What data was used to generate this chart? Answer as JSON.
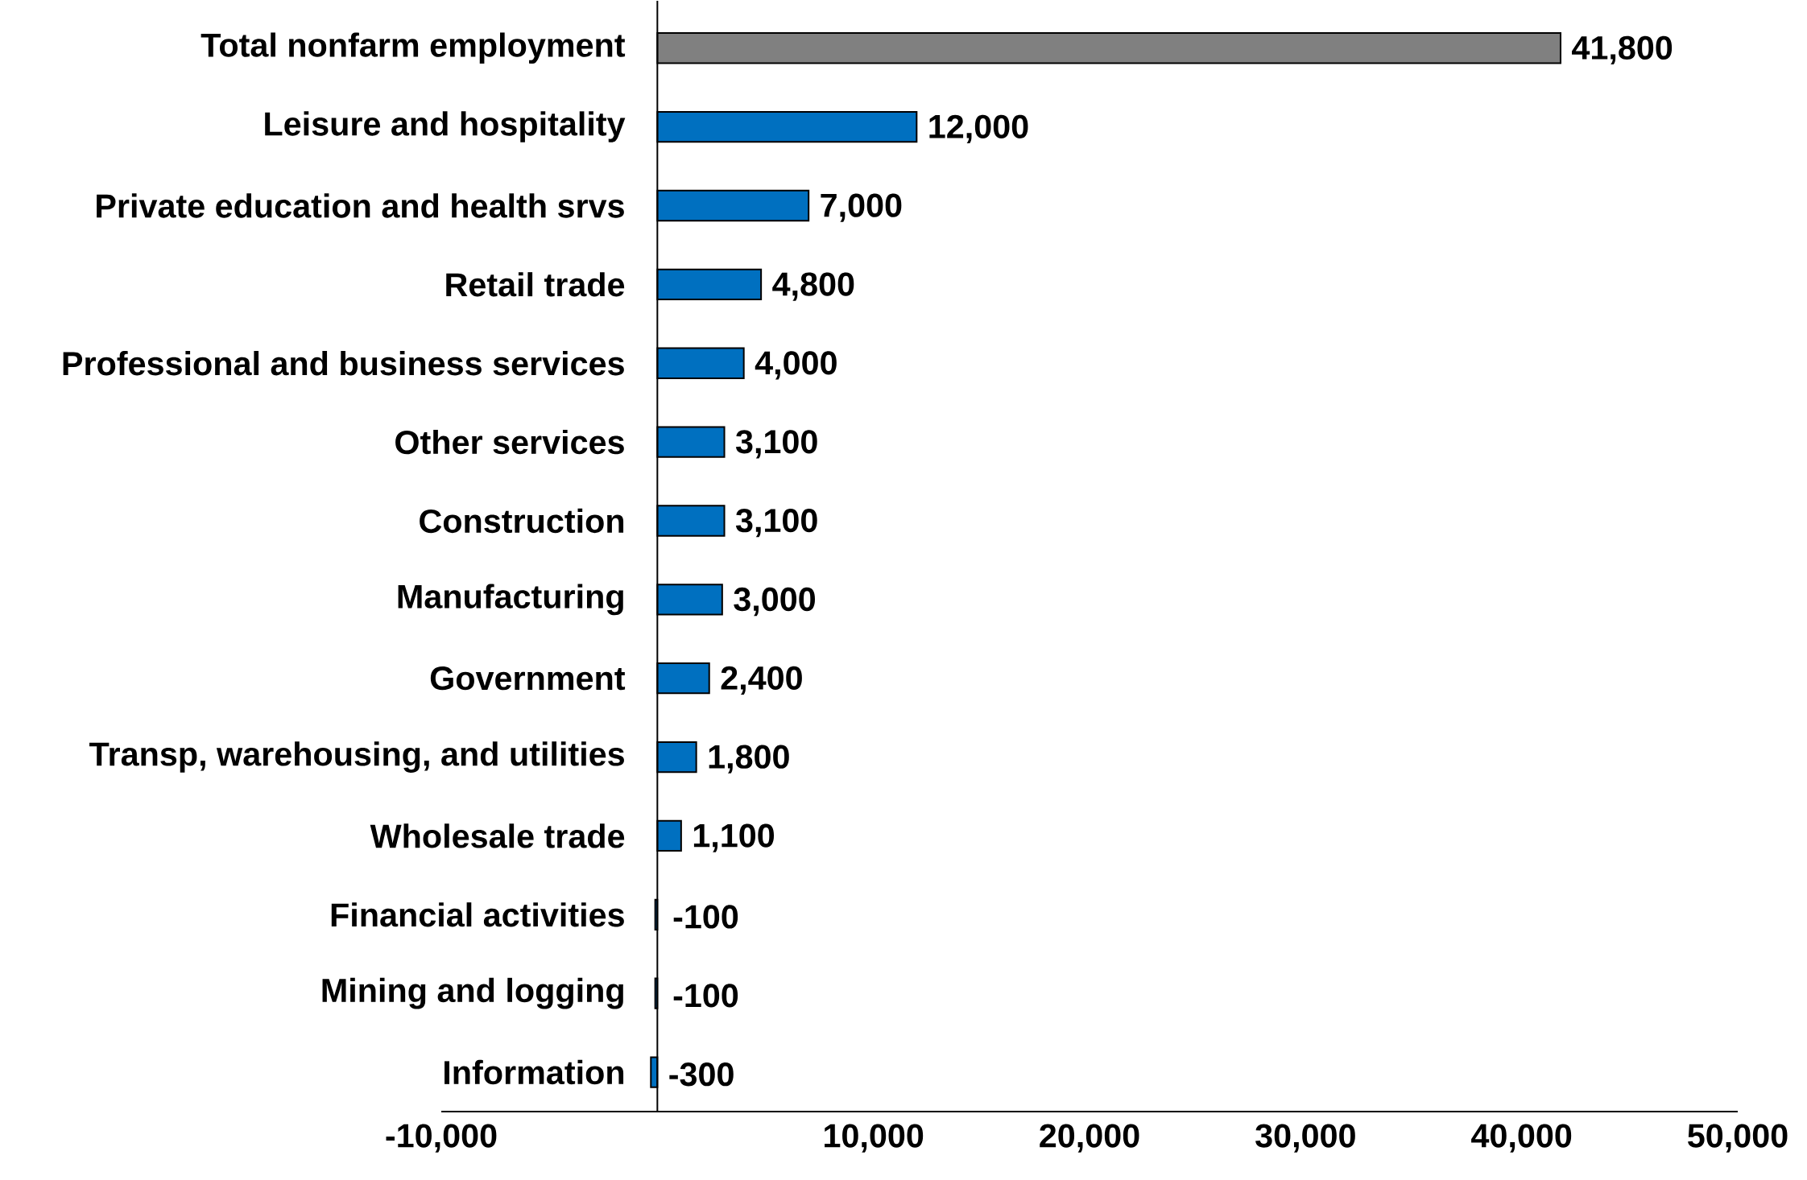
{
  "chart_data": {
    "type": "bar",
    "orientation": "horizontal",
    "categories": [
      "Total nonfarm employment",
      "Leisure and hospitality",
      "Private education and health srvs",
      "Retail trade",
      "Professional and business services",
      "Other services",
      "Construction",
      "Manufacturing",
      "Government",
      "Transp, warehousing, and utilities",
      "Wholesale trade",
      "Financial activities",
      "Mining and logging",
      "Information"
    ],
    "values": [
      41800,
      12000,
      7000,
      4800,
      4000,
      3100,
      3100,
      3000,
      2400,
      1800,
      1100,
      -100,
      -100,
      -300
    ],
    "value_labels": [
      "41,800",
      "12,000",
      "7,000",
      "4,800",
      "4,000",
      "3,100",
      "3,100",
      "3,000",
      "2,400",
      "1,800",
      "1,100",
      "-100",
      "-100",
      "-300"
    ],
    "colors": [
      "#808080",
      "#0070c0",
      "#0070c0",
      "#0070c0",
      "#0070c0",
      "#0070c0",
      "#0070c0",
      "#0070c0",
      "#0070c0",
      "#0070c0",
      "#0070c0",
      "#0070c0",
      "#0070c0",
      "#0070c0"
    ],
    "xlim": [
      -10000,
      50000
    ],
    "xticks": [
      {
        "value": -10000,
        "label": "-10,000"
      },
      {
        "value": 0,
        "label": null
      },
      {
        "value": 10000,
        "label": "10,000"
      },
      {
        "value": 20000,
        "label": "20,000"
      },
      {
        "value": 30000,
        "label": "30,000"
      },
      {
        "value": 40000,
        "label": "40,000"
      },
      {
        "value": 50000,
        "label": "50,000"
      }
    ],
    "grid": false
  }
}
